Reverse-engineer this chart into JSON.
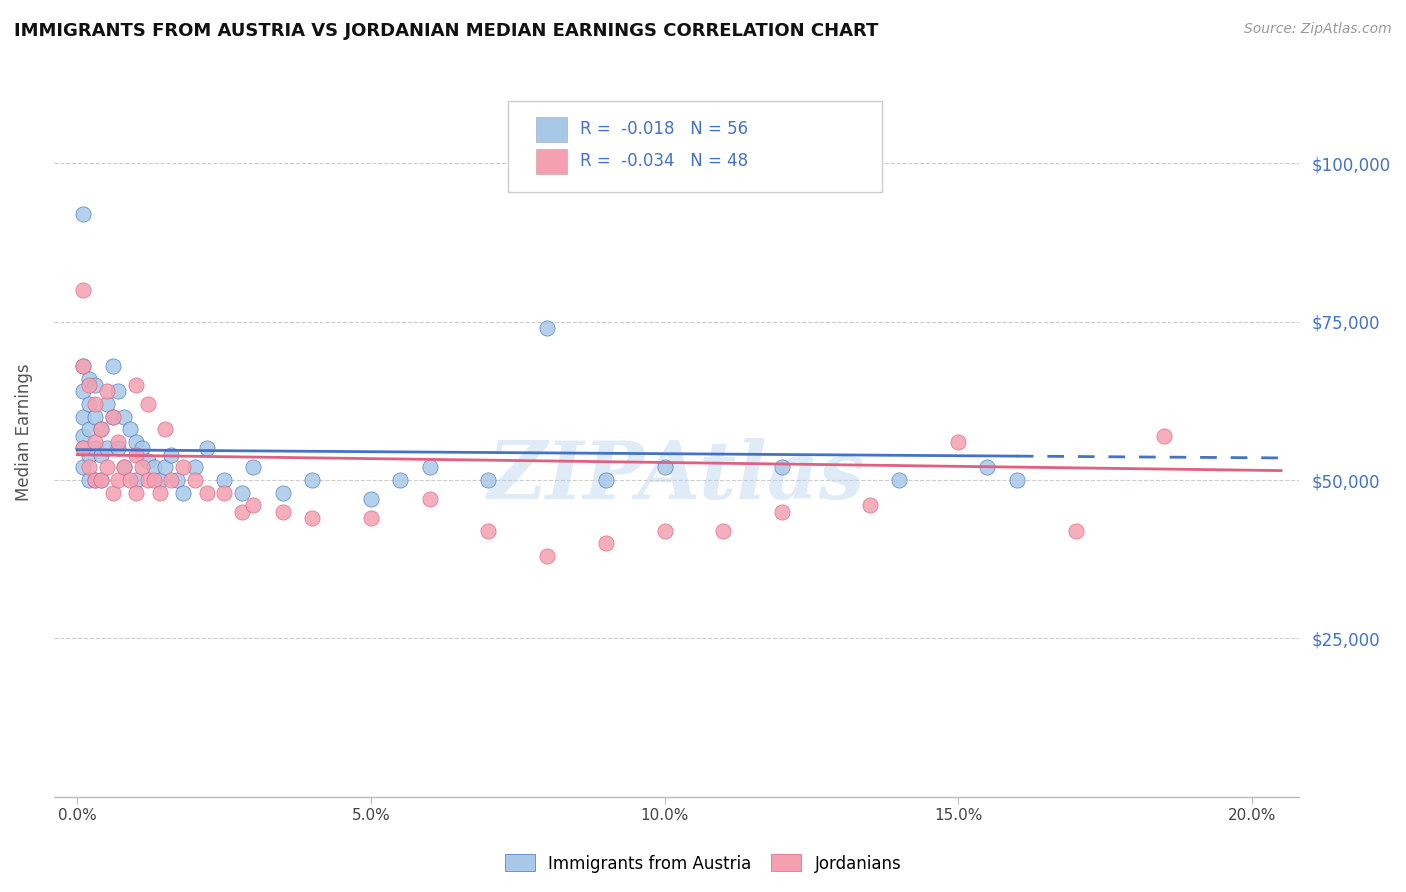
{
  "title": "IMMIGRANTS FROM AUSTRIA VS JORDANIAN MEDIAN EARNINGS CORRELATION CHART",
  "source": "Source: ZipAtlas.com",
  "ylabel": "Median Earnings",
  "xlabel_ticks": [
    "0.0%",
    "5.0%",
    "10.0%",
    "15.0%",
    "20.0%"
  ],
  "xlabel_vals": [
    0.0,
    0.05,
    0.1,
    0.15,
    0.2
  ],
  "ytick_labels": [
    "$25,000",
    "$50,000",
    "$75,000",
    "$100,000"
  ],
  "ytick_vals": [
    25000,
    50000,
    75000,
    100000
  ],
  "ylim": [
    0,
    115000
  ],
  "xlim": [
    -0.004,
    0.208
  ],
  "legend_label1": "Immigrants from Austria",
  "legend_label2": "Jordanians",
  "r1": "-0.018",
  "n1": "56",
  "r2": "-0.034",
  "n2": "48",
  "color_blue": "#a8c8e8",
  "color_pink": "#f4a0b0",
  "line_blue": "#4472c4",
  "line_pink": "#e06080",
  "watermark": "ZIPAtlas",
  "blue_dots_x": [
    0.001,
    0.001,
    0.001,
    0.001,
    0.001,
    0.001,
    0.001,
    0.002,
    0.002,
    0.002,
    0.002,
    0.002,
    0.003,
    0.003,
    0.003,
    0.003,
    0.004,
    0.004,
    0.004,
    0.005,
    0.005,
    0.006,
    0.006,
    0.007,
    0.007,
    0.008,
    0.008,
    0.009,
    0.01,
    0.01,
    0.011,
    0.012,
    0.013,
    0.014,
    0.015,
    0.016,
    0.017,
    0.018,
    0.02,
    0.022,
    0.025,
    0.028,
    0.03,
    0.035,
    0.04,
    0.05,
    0.055,
    0.06,
    0.07,
    0.08,
    0.09,
    0.1,
    0.12,
    0.14,
    0.155,
    0.16
  ],
  "blue_dots_y": [
    92000,
    68000,
    64000,
    60000,
    57000,
    55000,
    52000,
    66000,
    62000,
    58000,
    54000,
    50000,
    65000,
    60000,
    55000,
    50000,
    58000,
    54000,
    50000,
    62000,
    55000,
    68000,
    60000,
    64000,
    55000,
    60000,
    52000,
    58000,
    56000,
    50000,
    55000,
    53000,
    52000,
    50000,
    52000,
    54000,
    50000,
    48000,
    52000,
    55000,
    50000,
    48000,
    52000,
    48000,
    50000,
    47000,
    50000,
    52000,
    50000,
    74000,
    50000,
    52000,
    52000,
    50000,
    52000,
    50000
  ],
  "pink_dots_x": [
    0.001,
    0.001,
    0.001,
    0.002,
    0.002,
    0.003,
    0.003,
    0.003,
    0.004,
    0.004,
    0.005,
    0.005,
    0.006,
    0.006,
    0.007,
    0.007,
    0.008,
    0.009,
    0.01,
    0.01,
    0.011,
    0.012,
    0.013,
    0.014,
    0.016,
    0.018,
    0.02,
    0.022,
    0.025,
    0.028,
    0.03,
    0.035,
    0.04,
    0.05,
    0.06,
    0.07,
    0.08,
    0.09,
    0.1,
    0.11,
    0.12,
    0.135,
    0.15,
    0.17,
    0.185,
    0.01,
    0.012,
    0.015
  ],
  "pink_dots_y": [
    80000,
    68000,
    55000,
    65000,
    52000,
    62000,
    56000,
    50000,
    58000,
    50000,
    64000,
    52000,
    60000,
    48000,
    56000,
    50000,
    52000,
    50000,
    54000,
    48000,
    52000,
    50000,
    50000,
    48000,
    50000,
    52000,
    50000,
    48000,
    48000,
    45000,
    46000,
    45000,
    44000,
    44000,
    47000,
    42000,
    38000,
    40000,
    42000,
    42000,
    45000,
    46000,
    56000,
    42000,
    57000,
    65000,
    62000,
    58000
  ],
  "dot_size": 120
}
